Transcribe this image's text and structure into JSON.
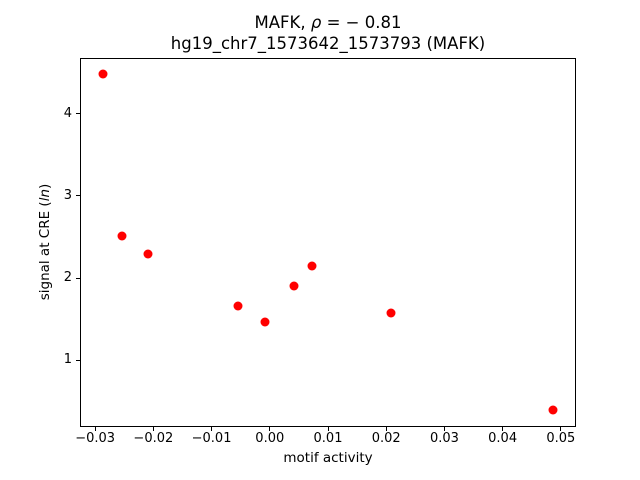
{
  "figure": {
    "title_line1": {
      "prefix": "MAFK, ",
      "rho": "ρ",
      "suffix": " = − 0.81"
    },
    "title_line2": "hg19_chr7_1573642_1573793 (MAFK)",
    "xlabel": "motif activity",
    "ylabel": {
      "prefix": "signal at CRE (",
      "italic": "ln",
      "suffix": ")"
    }
  },
  "chart_data": {
    "type": "scatter",
    "title": "MAFK, ρ = − 0.81",
    "subtitle": "hg19_chr7_1573642_1573793 (MAFK)",
    "xlabel": "motif activity",
    "ylabel": "signal at CRE (ln)",
    "marker_color": "#ff0000",
    "marker_shape": "circle",
    "grid": false,
    "legend": null,
    "x": [
      -0.0286,
      -0.0254,
      -0.021,
      -0.0055,
      -0.0009,
      0.0042,
      0.0073,
      0.0208,
      0.0486
    ],
    "y": [
      4.48,
      2.51,
      2.29,
      1.66,
      1.47,
      1.91,
      2.15,
      1.57,
      0.4
    ],
    "xlim": [
      -0.0326,
      0.0526
    ],
    "ylim": [
      0.185,
      4.685
    ],
    "xticks": {
      "values": [
        -0.03,
        -0.02,
        -0.01,
        0.0,
        0.01,
        0.02,
        0.03,
        0.04,
        0.05
      ],
      "labels": [
        "−0.03",
        "−0.02",
        "−0.01",
        "0.00",
        "0.01",
        "0.02",
        "0.03",
        "0.04",
        "0.05"
      ]
    },
    "yticks": {
      "values": [
        1,
        2,
        3,
        4
      ],
      "labels": [
        "1",
        "2",
        "3",
        "4"
      ]
    }
  }
}
